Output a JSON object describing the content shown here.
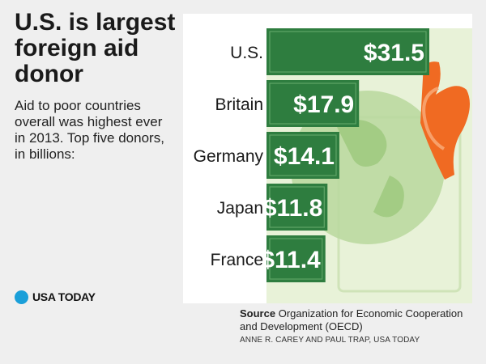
{
  "headline": "U.S. is largest foreign aid donor",
  "subhead": "Aid to poor countries overall was highest ever in 2013.  Top five donors, in billions:",
  "logo_text": "USA TODAY",
  "source_label": "Source",
  "source_text": "Organization for Economic Cooperation and Development (OECD)",
  "credit": "ANNE R. CAREY AND PAUL TRAP, USA TODAY",
  "colors": {
    "bar": "#2e7d3f",
    "bar_light": "#5fa567",
    "money_bg": "#e8f2d8",
    "globe": "#b9d89d",
    "hand": "#f06a22",
    "logo_dot": "#1a9fd9"
  },
  "chart_data": {
    "type": "bar",
    "orientation": "horizontal",
    "title": "",
    "xlabel": "",
    "ylabel": "",
    "categories": [
      "U.S.",
      "Britain",
      "Germany",
      "Japan",
      "France"
    ],
    "values": [
      31.5,
      17.9,
      14.1,
      11.8,
      11.4
    ],
    "value_labels": [
      "$31.5",
      "$17.9",
      "$14.1",
      "$11.8",
      "$11.4"
    ],
    "units": "billions of dollars",
    "xlim": [
      0,
      31.5
    ]
  }
}
